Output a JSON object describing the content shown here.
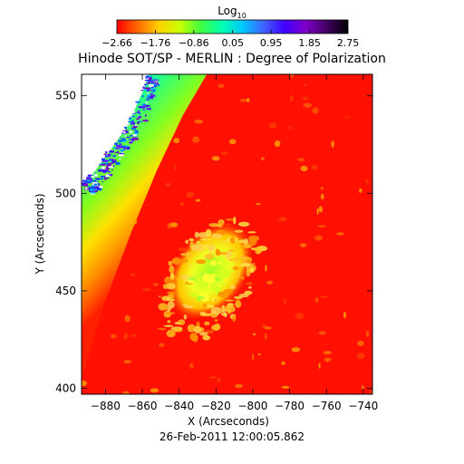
{
  "chart_data": {
    "type": "heatmap",
    "title": "Hinode SOT/SP - MERLIN : Degree of Polarization",
    "xlabel": "X (Arcseconds)",
    "ylabel": "Y (Arcseconds)",
    "footer": "26-Feb-2011 12:00:05.862",
    "xlim": [
      -893,
      -735
    ],
    "ylim": [
      397,
      561
    ],
    "x_ticks": [
      -880,
      -860,
      -840,
      -820,
      -800,
      -780,
      -760,
      -740
    ],
    "y_ticks": [
      400,
      450,
      500,
      550
    ],
    "x_tick_labels": [
      "−880",
      "−860",
      "−840",
      "−820",
      "−800",
      "−780",
      "−760",
      "−740"
    ],
    "y_tick_labels": [
      "400",
      "450",
      "500",
      "550"
    ],
    "colorbar": {
      "label_base": "Log",
      "label_sub": "10",
      "range": [
        -2.66,
        2.75
      ],
      "ticks": [
        -2.66,
        -1.76,
        -0.86,
        0.05,
        0.95,
        1.85,
        2.75
      ],
      "tick_labels": [
        "−2.66",
        "−1.76",
        "−0.86",
        "0.05",
        "0.95",
        "1.85",
        "2.75"
      ],
      "colors": [
        "#ff0000",
        "#ff6a00",
        "#ffd000",
        "#c8ff00",
        "#40ff40",
        "#00ffb0",
        "#00c8ff",
        "#4060ff",
        "#4000ff",
        "#8000c8",
        "#400060",
        "#000000"
      ]
    },
    "limb": {
      "comment_free": true,
      "points": [
        [
          -893,
          405
        ],
        [
          -880,
          445
        ],
        [
          -866,
          480
        ],
        [
          -852,
          512
        ],
        [
          -838,
          540
        ],
        [
          -825,
          561
        ]
      ]
    },
    "active_region": {
      "center": [
        -823,
        460
      ],
      "level_core": 0.05,
      "level_edge": -0.86
    },
    "background_level": -2.66
  }
}
